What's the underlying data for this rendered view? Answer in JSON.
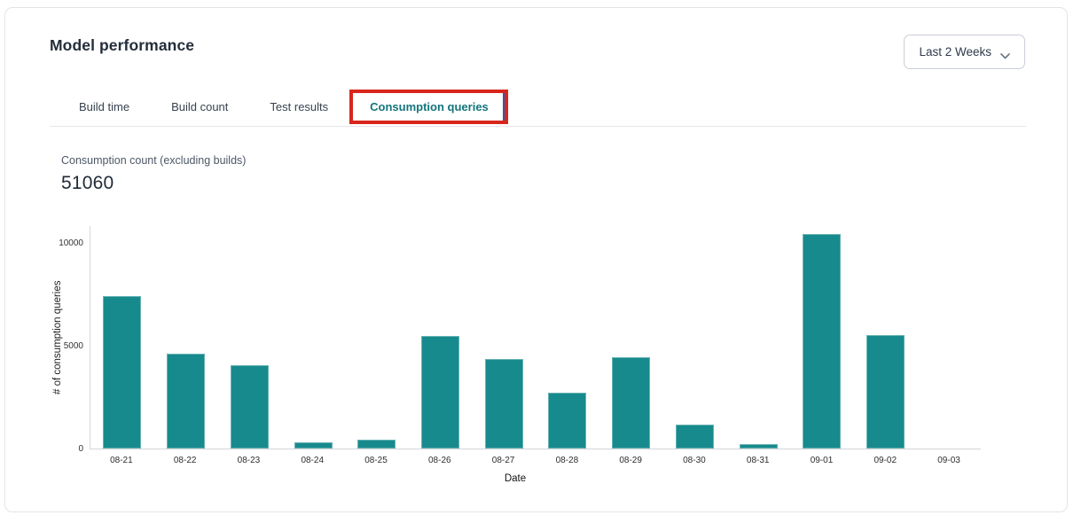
{
  "header": {
    "title": "Model performance"
  },
  "period_selector": {
    "value": "Last 2 Weeks"
  },
  "tabs": [
    {
      "label": "Build time",
      "active": false
    },
    {
      "label": "Build count",
      "active": false
    },
    {
      "label": "Test results",
      "active": false
    },
    {
      "label": "Consumption queries",
      "active": true
    }
  ],
  "annotation": {
    "highlight_color": "#d8261d",
    "highlighted_tab": "Consumption queries"
  },
  "metric": {
    "label": "Consumption count (excluding builds)",
    "value": "51060"
  },
  "chart_data": {
    "type": "bar",
    "title": "",
    "xlabel": "Date",
    "ylabel": "# of consumption queries",
    "categories": [
      "08-21",
      "08-22",
      "08-23",
      "08-24",
      "08-25",
      "08-26",
      "08-27",
      "08-28",
      "08-29",
      "08-30",
      "08-31",
      "09-01",
      "09-02",
      "09-03"
    ],
    "values": [
      7400,
      4600,
      4050,
      300,
      430,
      5480,
      4350,
      2700,
      4450,
      1150,
      200,
      10420,
      5530,
      0
    ],
    "yticks": [
      0,
      5000,
      10000
    ],
    "ylim": [
      0,
      10900
    ],
    "grid": false,
    "legend": "none",
    "bar_color": "#178a8d"
  },
  "colors": {
    "active_tab_teal": "#13757b",
    "bar_teal": "#178a8d",
    "annotation_red": "#d8261d"
  }
}
